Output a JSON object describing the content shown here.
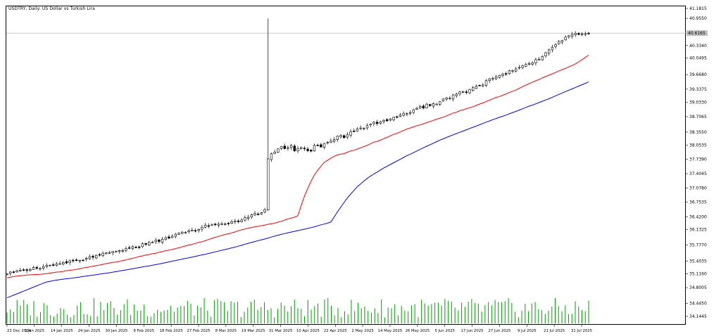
{
  "window": {
    "title": "USDTRY, Daily:  US Dollar vs Turkish Lira"
  },
  "colors": {
    "background": "#ffffff",
    "frame": "#000000",
    "candle_bull": "#ffffff",
    "candle_bear": "#000000",
    "ma_fast": "#ff0000",
    "ma_slow": "#0000ff",
    "volume": "#00a000",
    "price_line": "#c0c0c0"
  },
  "chart_data": {
    "type": "candlestick",
    "symbol": "USDTRY",
    "timeframe": "Daily",
    "title": "USDTRY, Daily:  US Dollar vs Turkish Lira",
    "price_axis_labels": [
      "41.1815",
      "40.9550",
      "40.6165",
      "40.3340",
      "40.0495",
      "39.6680",
      "39.3375",
      "39.0330",
      "38.7065",
      "38.3550",
      "38.0535",
      "37.7390",
      "37.4045",
      "37.0780",
      "36.7535",
      "36.4200",
      "36.1325",
      "35.7770",
      "35.4035",
      "35.1160",
      "34.8005",
      "34.4450",
      "34.1445"
    ],
    "current_price_label": "40.6165",
    "date_axis_labels": [
      "23 Dec 2024",
      "3 Jan 2025",
      "14 Jan 2025",
      "24 Jan 2025",
      "30 Jan 2025",
      "8 Feb 2025",
      "18 Feb 2025",
      "27 Feb 2025",
      "8 Mar 2025",
      "19 Mar 2025",
      "31 Mar 2025",
      "10 Apr 2025",
      "22 Apr 2025",
      "2 May 2025",
      "14 May 2025",
      "26 May 2025",
      "5 Jun 2025",
      "17 Jun 2025",
      "27 Jun 2025",
      "9 Jul 2025",
      "21 Jul 2025",
      "31 Jul 2025"
    ],
    "ylim": [
      34.1445,
      41.1815
    ],
    "spike_high": 40.955,
    "closes": [
      35.116,
      35.159,
      35.159,
      35.186,
      35.196,
      35.201,
      35.191,
      35.216,
      35.262,
      35.242,
      35.239,
      35.279,
      35.309,
      35.311,
      35.316,
      35.346,
      35.349,
      35.376,
      35.363,
      35.413,
      35.421,
      35.433,
      35.426,
      35.431,
      35.473,
      35.508,
      35.493,
      35.541,
      35.546,
      35.583,
      35.598,
      35.601,
      35.626,
      35.626,
      35.651,
      35.646,
      35.694,
      35.704,
      35.736,
      35.721,
      35.726,
      35.804,
      35.789,
      35.834,
      35.837,
      35.882,
      35.854,
      35.902,
      35.941,
      35.929,
      35.976,
      36.023,
      36.041,
      36.071,
      36.061,
      36.103,
      36.113,
      36.103,
      36.131,
      36.181,
      36.226,
      36.208,
      36.236,
      36.242,
      36.251,
      36.261,
      36.256,
      36.269,
      36.307,
      36.322,
      36.306,
      36.346,
      36.401,
      36.408,
      36.466,
      36.494,
      36.471,
      36.512,
      36.584,
      37.744,
      37.864,
      37.9,
      37.971,
      38.024,
      37.977,
      37.998,
      38.052,
      37.926,
      37.977,
      38.001,
      37.978,
      37.929,
      37.919,
      38.051,
      38.054,
      38.014,
      38.095,
      38.12,
      38.154,
      38.181,
      38.266,
      38.28,
      38.225,
      38.296,
      38.364,
      38.372,
      38.429,
      38.449,
      38.444,
      38.503,
      38.544,
      38.581,
      38.549,
      38.591,
      38.624,
      38.611,
      38.657,
      38.694,
      38.695,
      38.745,
      38.785,
      38.775,
      38.801,
      38.865,
      38.898,
      38.941,
      38.904,
      38.994,
      38.96,
      39.008,
      38.994,
      39.052,
      39.112,
      39.136,
      39.13,
      39.207,
      39.224,
      39.273,
      39.282,
      39.259,
      39.326,
      39.37,
      39.409,
      39.427,
      39.432,
      39.53,
      39.574,
      39.58,
      39.619,
      39.649,
      39.677,
      39.692,
      39.759,
      39.761,
      39.799,
      39.834,
      39.87,
      39.9,
      39.922,
      39.935,
      40.011,
      40.018,
      40.084,
      40.169,
      40.234,
      40.295,
      40.356,
      40.426,
      40.447,
      40.524,
      40.559,
      40.589,
      40.614,
      40.584,
      40.601,
      40.604,
      40.616
    ],
    "ma_fast": {
      "start": 35.002,
      "end": 40.434
    },
    "ma_slow": {
      "start": 34.567,
      "end": 39.928
    },
    "volume_bars": 175
  }
}
